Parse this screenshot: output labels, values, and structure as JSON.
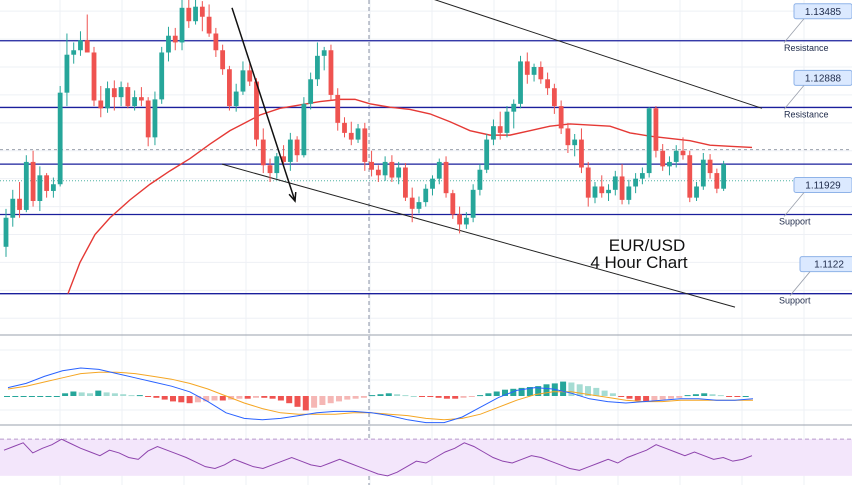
{
  "chart_data": {
    "type": "candlestick",
    "title": "EUR/USD",
    "subtitle": "4 Hour Chart",
    "y_range": [
      1.1085,
      1.1385
    ],
    "grid": true,
    "levels": [
      {
        "price": 1.13485,
        "tag": "1.13485",
        "label": "Resistance"
      },
      {
        "price": 1.12888,
        "tag": "1.12888",
        "label": "Resistance"
      },
      {
        "price": 1.1238,
        "tag": "",
        "label": ""
      },
      {
        "price": 1.11929,
        "tag": "1.11929",
        "label": "Support"
      },
      {
        "price": 1.1122,
        "tag": "1.1122",
        "label": "Support"
      }
    ],
    "candles": [
      [
        1.1164,
        1.1198,
        1.1155,
        1.119
      ],
      [
        1.119,
        1.1215,
        1.1182,
        1.1207
      ],
      [
        1.1207,
        1.1222,
        1.119,
        1.1197
      ],
      [
        1.1197,
        1.1246,
        1.1195,
        1.124
      ],
      [
        1.124,
        1.125,
        1.12,
        1.1205
      ],
      [
        1.1205,
        1.1236,
        1.1196,
        1.1228
      ],
      [
        1.1228,
        1.123,
        1.1208,
        1.1214
      ],
      [
        1.1214,
        1.1226,
        1.1208,
        1.122
      ],
      [
        1.122,
        1.1308,
        1.1218,
        1.1302
      ],
      [
        1.1302,
        1.1355,
        1.129,
        1.1336
      ],
      [
        1.1336,
        1.1347,
        1.1328,
        1.134
      ],
      [
        1.134,
        1.1357,
        1.1335,
        1.1349
      ],
      [
        1.1349,
        1.1372,
        1.1338,
        1.1338
      ],
      [
        1.1338,
        1.1343,
        1.129,
        1.1295
      ],
      [
        1.1295,
        1.1308,
        1.128,
        1.1288
      ],
      [
        1.1288,
        1.1312,
        1.1284,
        1.1306
      ],
      [
        1.1306,
        1.1313,
        1.1286,
        1.1298
      ],
      [
        1.1298,
        1.1312,
        1.129,
        1.1307
      ],
      [
        1.1307,
        1.1311,
        1.1288,
        1.129
      ],
      [
        1.129,
        1.1304,
        1.1286,
        1.1298
      ],
      [
        1.1298,
        1.1307,
        1.129,
        1.1295
      ],
      [
        1.1295,
        1.1298,
        1.1254,
        1.1262
      ],
      [
        1.1262,
        1.1303,
        1.1255,
        1.1296
      ],
      [
        1.1296,
        1.1343,
        1.1292,
        1.1338
      ],
      [
        1.1338,
        1.1361,
        1.133,
        1.1353
      ],
      [
        1.1353,
        1.136,
        1.134,
        1.1347
      ],
      [
        1.1347,
        1.1386,
        1.134,
        1.1378
      ],
      [
        1.1378,
        1.1386,
        1.136,
        1.1366
      ],
      [
        1.1366,
        1.1385,
        1.1363,
        1.1379
      ],
      [
        1.1379,
        1.1384,
        1.1357,
        1.137
      ],
      [
        1.137,
        1.1381,
        1.1352,
        1.1355
      ],
      [
        1.1355,
        1.136,
        1.1334,
        1.134
      ],
      [
        1.134,
        1.1345,
        1.1318,
        1.1323
      ],
      [
        1.1323,
        1.1326,
        1.1286,
        1.129
      ],
      [
        1.129,
        1.131,
        1.1285,
        1.1303
      ],
      [
        1.1303,
        1.133,
        1.13,
        1.1322
      ],
      [
        1.1322,
        1.1328,
        1.1308,
        1.1312
      ],
      [
        1.1312,
        1.1315,
        1.1254,
        1.126
      ],
      [
        1.126,
        1.127,
        1.123,
        1.1237
      ],
      [
        1.1237,
        1.1243,
        1.1222,
        1.123
      ],
      [
        1.123,
        1.1248,
        1.1225,
        1.1245
      ],
      [
        1.1245,
        1.1255,
        1.1236,
        1.124
      ],
      [
        1.124,
        1.1266,
        1.1232,
        1.126
      ],
      [
        1.126,
        1.1263,
        1.124,
        1.1246
      ],
      [
        1.1246,
        1.1298,
        1.1244,
        1.1292
      ],
      [
        1.1292,
        1.132,
        1.1287,
        1.1314
      ],
      [
        1.1314,
        1.1347,
        1.1308,
        1.1335
      ],
      [
        1.1335,
        1.1343,
        1.1322,
        1.134
      ],
      [
        1.134,
        1.1345,
        1.1295,
        1.13
      ],
      [
        1.13,
        1.1306,
        1.1268,
        1.1275
      ],
      [
        1.1275,
        1.128,
        1.1262,
        1.1266
      ],
      [
        1.1266,
        1.1276,
        1.1255,
        1.126
      ],
      [
        1.126,
        1.1274,
        1.1257,
        1.127
      ],
      [
        1.127,
        1.1275,
        1.1232,
        1.124
      ],
      [
        1.124,
        1.125,
        1.1227,
        1.1233
      ],
      [
        1.1233,
        1.1237,
        1.1222,
        1.1228
      ],
      [
        1.1228,
        1.1245,
        1.1223,
        1.124
      ],
      [
        1.124,
        1.1246,
        1.1222,
        1.1226
      ],
      [
        1.1226,
        1.124,
        1.122,
        1.1235
      ],
      [
        1.1235,
        1.1239,
        1.1205,
        1.1208
      ],
      [
        1.1208,
        1.1217,
        1.1186,
        1.1198
      ],
      [
        1.1198,
        1.1209,
        1.1194,
        1.1204
      ],
      [
        1.1204,
        1.122,
        1.12,
        1.1216
      ],
      [
        1.1216,
        1.1228,
        1.121,
        1.1225
      ],
      [
        1.1225,
        1.1243,
        1.122,
        1.124
      ],
      [
        1.124,
        1.1245,
        1.1208,
        1.1212
      ],
      [
        1.1212,
        1.1215,
        1.1189,
        1.1193
      ],
      [
        1.1193,
        1.12,
        1.1176,
        1.1184
      ],
      [
        1.1184,
        1.1195,
        1.118,
        1.119
      ],
      [
        1.119,
        1.122,
        1.1186,
        1.1215
      ],
      [
        1.1215,
        1.1238,
        1.121,
        1.1233
      ],
      [
        1.1233,
        1.1265,
        1.123,
        1.126
      ],
      [
        1.126,
        1.1278,
        1.1255,
        1.1272
      ],
      [
        1.1272,
        1.1285,
        1.126,
        1.1266
      ],
      [
        1.1266,
        1.129,
        1.1262,
        1.1285
      ],
      [
        1.1285,
        1.1296,
        1.127,
        1.1292
      ],
      [
        1.1292,
        1.1335,
        1.1288,
        1.133
      ],
      [
        1.133,
        1.1338,
        1.131,
        1.1318
      ],
      [
        1.1318,
        1.1328,
        1.1312,
        1.1325
      ],
      [
        1.1325,
        1.133,
        1.131,
        1.1314
      ],
      [
        1.1314,
        1.132,
        1.13,
        1.1306
      ],
      [
        1.1306,
        1.131,
        1.1283,
        1.129
      ],
      [
        1.129,
        1.1295,
        1.1265,
        1.127
      ],
      [
        1.127,
        1.1275,
        1.1248,
        1.1255
      ],
      [
        1.1255,
        1.1265,
        1.1245,
        1.126
      ],
      [
        1.126,
        1.127,
        1.123,
        1.1235
      ],
      [
        1.1235,
        1.124,
        1.12,
        1.1208
      ],
      [
        1.1208,
        1.1222,
        1.1203,
        1.1218
      ],
      [
        1.1218,
        1.1228,
        1.1208,
        1.1212
      ],
      [
        1.1212,
        1.122,
        1.1205,
        1.1215
      ],
      [
        1.1215,
        1.1232,
        1.121,
        1.1227
      ],
      [
        1.1227,
        1.1238,
        1.1202,
        1.1206
      ],
      [
        1.1206,
        1.1224,
        1.1202,
        1.1218
      ],
      [
        1.1218,
        1.123,
        1.1212,
        1.1225
      ],
      [
        1.1225,
        1.1235,
        1.122,
        1.123
      ],
      [
        1.123,
        1.1289,
        1.1226,
        1.1288
      ],
      [
        1.1288,
        1.129,
        1.1244,
        1.125
      ],
      [
        1.125,
        1.1256,
        1.1232,
        1.1236
      ],
      [
        1.1236,
        1.1245,
        1.1228,
        1.124
      ],
      [
        1.124,
        1.1255,
        1.1235,
        1.125
      ],
      [
        1.125,
        1.1262,
        1.1242,
        1.1246
      ],
      [
        1.1246,
        1.125,
        1.1204,
        1.1208
      ],
      [
        1.1208,
        1.1222,
        1.1205,
        1.1218
      ],
      [
        1.1218,
        1.1248,
        1.1215,
        1.1242
      ],
      [
        1.1242,
        1.1247,
        1.1225,
        1.123
      ],
      [
        1.123,
        1.1234,
        1.1212,
        1.1216
      ],
      [
        1.1216,
        1.1241,
        1.1214,
        1.1238
      ]
    ],
    "ma": [
      [
        68,
        1.1122
      ],
      [
        80,
        1.115
      ],
      [
        95,
        1.1175
      ],
      [
        110,
        1.119
      ],
      [
        130,
        1.1206
      ],
      [
        150,
        1.122
      ],
      [
        170,
        1.1232
      ],
      [
        190,
        1.1243
      ],
      [
        210,
        1.1256
      ],
      [
        230,
        1.1268
      ],
      [
        245,
        1.1275
      ],
      [
        260,
        1.1282
      ],
      [
        280,
        1.1288
      ],
      [
        300,
        1.1291
      ],
      [
        320,
        1.1294
      ],
      [
        340,
        1.1296
      ],
      [
        355,
        1.1296
      ],
      [
        370,
        1.1292
      ],
      [
        390,
        1.1289
      ],
      [
        410,
        1.1287
      ],
      [
        430,
        1.1283
      ],
      [
        450,
        1.1276
      ],
      [
        470,
        1.1268
      ],
      [
        490,
        1.1264
      ],
      [
        510,
        1.1264
      ],
      [
        530,
        1.1268
      ],
      [
        550,
        1.1272
      ],
      [
        570,
        1.1274
      ],
      [
        590,
        1.1273
      ],
      [
        610,
        1.1272
      ],
      [
        630,
        1.1266
      ],
      [
        650,
        1.1263
      ],
      [
        670,
        1.1261
      ],
      [
        690,
        1.1259
      ],
      [
        710,
        1.1255
      ],
      [
        730,
        1.1254
      ],
      [
        752,
        1.1253
      ]
    ],
    "channel_lines": [
      [
        [
          318,
          1.142
        ],
        [
          762,
          1.1288
        ]
      ],
      [
        [
          222,
          1.1238
        ],
        [
          735,
          1.111
        ]
      ]
    ],
    "trend_arrows": [
      [
        [
          232,
          1.1378
        ],
        [
          295,
          1.1205
        ]
      ]
    ],
    "vertical_marker_x": 369,
    "horizontal_marker_price": 1.1251,
    "macd": {
      "histogram": [
        0,
        0,
        0,
        0,
        0,
        0,
        0,
        0.3,
        0.5,
        0.4,
        0.3,
        0.6,
        0.4,
        0.3,
        0.2,
        0.1,
        0.1,
        -0.1,
        -0.2,
        -0.4,
        -0.6,
        -0.7,
        -0.8,
        -0.7,
        -0.6,
        -0.5,
        -0.5,
        -0.4,
        -0.3,
        -0.3,
        -0.2,
        -0.2,
        -0.3,
        -0.5,
        -0.8,
        -1.2,
        -1.6,
        -1.3,
        -1.0,
        -0.8,
        -0.6,
        -0.4,
        -0.3,
        -0.2,
        0.1,
        0.2,
        0.3,
        0.2,
        0.1,
        0,
        -0.1,
        -0.1,
        -0.2,
        -0.3,
        -0.3,
        -0.2,
        -0.1,
        0.1,
        0.3,
        0.5,
        0.7,
        0.8,
        0.9,
        1.0,
        1.1,
        1.3,
        1.4,
        1.6,
        1.5,
        1.3,
        1.1,
        0.9,
        0.6,
        0.3,
        -0.1,
        -0.3,
        -0.5,
        -0.6,
        -0.5,
        -0.4,
        -0.3,
        -0.2,
        0.1,
        0.2,
        0.3,
        0.2,
        0.1,
        -0.1,
        -0.1,
        0
      ],
      "macd_line": [
        0.6,
        0.9,
        1.4,
        1.8,
        2.0,
        1.9,
        1.6,
        1.3,
        1.0,
        0.7,
        0.3,
        -0.4,
        -1.2,
        -1.6,
        -1.7,
        -1.6,
        -1.4,
        -1.2,
        -1.1,
        -1.1,
        -1.2,
        -1.4,
        -1.7,
        -1.9,
        -1.9,
        -1.5,
        -0.8,
        -0.1,
        0.4,
        0.6,
        0.5,
        0.2,
        -0.2,
        -0.4,
        -0.5,
        -0.4,
        -0.3,
        -0.2,
        -0.2,
        -0.3,
        -0.3,
        -0.2
      ],
      "signal_line": [
        0.5,
        0.7,
        1.0,
        1.3,
        1.6,
        1.7,
        1.7,
        1.6,
        1.4,
        1.2,
        0.9,
        0.5,
        0,
        -0.5,
        -0.9,
        -1.2,
        -1.3,
        -1.3,
        -1.3,
        -1.2,
        -1.2,
        -1.3,
        -1.4,
        -1.6,
        -1.7,
        -1.6,
        -1.3,
        -0.8,
        -0.3,
        0.1,
        0.3,
        0.3,
        0.1,
        -0.1,
        -0.3,
        -0.4,
        -0.4,
        -0.3,
        -0.3,
        -0.3,
        -0.3,
        -0.3
      ]
    },
    "rsi": {
      "values": [
        58,
        62,
        66,
        55,
        60,
        64,
        70,
        65,
        60,
        56,
        52,
        58,
        55,
        50,
        48,
        57,
        62,
        58,
        54,
        50,
        45,
        40,
        38,
        42,
        48,
        44,
        40,
        38,
        42,
        46,
        50,
        46,
        42,
        40,
        44,
        48,
        44,
        40,
        36,
        32,
        30,
        34,
        40,
        46,
        44,
        50,
        56,
        60,
        66,
        62,
        56,
        50,
        46,
        44,
        48,
        52,
        50,
        46,
        42,
        38,
        36,
        40,
        44,
        48,
        44,
        50,
        54,
        58,
        64,
        60,
        56,
        52,
        56,
        52,
        48,
        50,
        46,
        48,
        52
      ],
      "range": [
        20,
        80
      ],
      "band": [
        30,
        70
      ]
    }
  }
}
